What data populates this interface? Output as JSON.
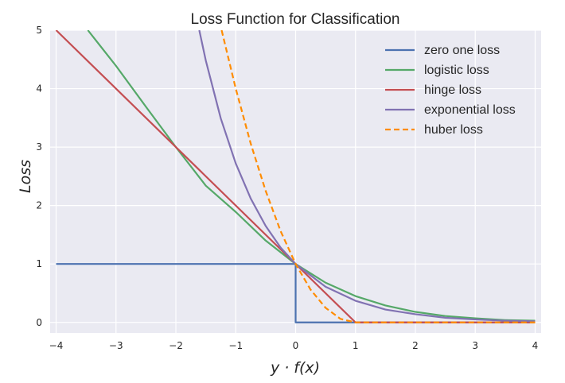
{
  "chart_data": {
    "type": "line",
    "title": "Loss Function for Classification",
    "xlabel": "y · f(x)",
    "ylabel": "Loss",
    "xlim": [
      -4.1,
      4.1
    ],
    "ylim": [
      -0.18,
      5
    ],
    "x_ticks": [
      -4,
      -3,
      -2,
      -1,
      0,
      1,
      2,
      3,
      4
    ],
    "x_tick_labels": [
      "−4",
      "−3",
      "−2",
      "−1",
      "0",
      "1",
      "2",
      "3",
      "4"
    ],
    "y_ticks": [
      0,
      1,
      2,
      3,
      4,
      5
    ],
    "y_tick_labels": [
      "0",
      "1",
      "2",
      "3",
      "4",
      "5"
    ],
    "grid": true,
    "background": "#eaeaf2",
    "legend_position": "top-right",
    "series": [
      {
        "name": "zero one loss",
        "color": "#4c72b0",
        "dash": "solid",
        "x": [
          -4,
          0,
          0,
          4
        ],
        "y": [
          1,
          1,
          0,
          0
        ]
      },
      {
        "name": "logistic loss",
        "color": "#55a868",
        "dash": "solid",
        "x": [
          -3.47,
          -3,
          -2.5,
          -2,
          -1.5,
          -1,
          -0.5,
          0,
          0.5,
          1,
          1.5,
          2,
          2.5,
          3,
          3.5,
          4
        ],
        "y": [
          5.0,
          4.39,
          3.69,
          3.0,
          2.34,
          1.89,
          1.4,
          1.0,
          0.68,
          0.45,
          0.29,
          0.18,
          0.11,
          0.07,
          0.04,
          0.03
        ]
      },
      {
        "name": "hinge loss",
        "color": "#c44e52",
        "dash": "solid",
        "x": [
          -4,
          1,
          4
        ],
        "y": [
          5,
          0,
          0
        ]
      },
      {
        "name": "exponential loss",
        "color": "#8172b2",
        "dash": "solid",
        "x": [
          -1.609,
          -1.5,
          -1.25,
          -1,
          -0.75,
          -0.5,
          -0.25,
          0,
          0.5,
          1,
          1.5,
          2,
          2.5,
          3,
          3.5,
          4
        ],
        "y": [
          5.0,
          4.48,
          3.49,
          2.72,
          2.12,
          1.65,
          1.28,
          1.0,
          0.61,
          0.37,
          0.22,
          0.14,
          0.08,
          0.05,
          0.03,
          0.02
        ]
      },
      {
        "name": "huber loss",
        "color": "#ff8c00",
        "dash": "dashed",
        "x": [
          -1.236,
          -1,
          -0.75,
          -0.5,
          -0.25,
          0,
          0.25,
          0.5,
          0.75,
          1,
          4
        ],
        "y": [
          5.0,
          4.0,
          3.06,
          2.25,
          1.56,
          1.0,
          0.56,
          0.25,
          0.06,
          0.0,
          0.0
        ]
      }
    ]
  }
}
